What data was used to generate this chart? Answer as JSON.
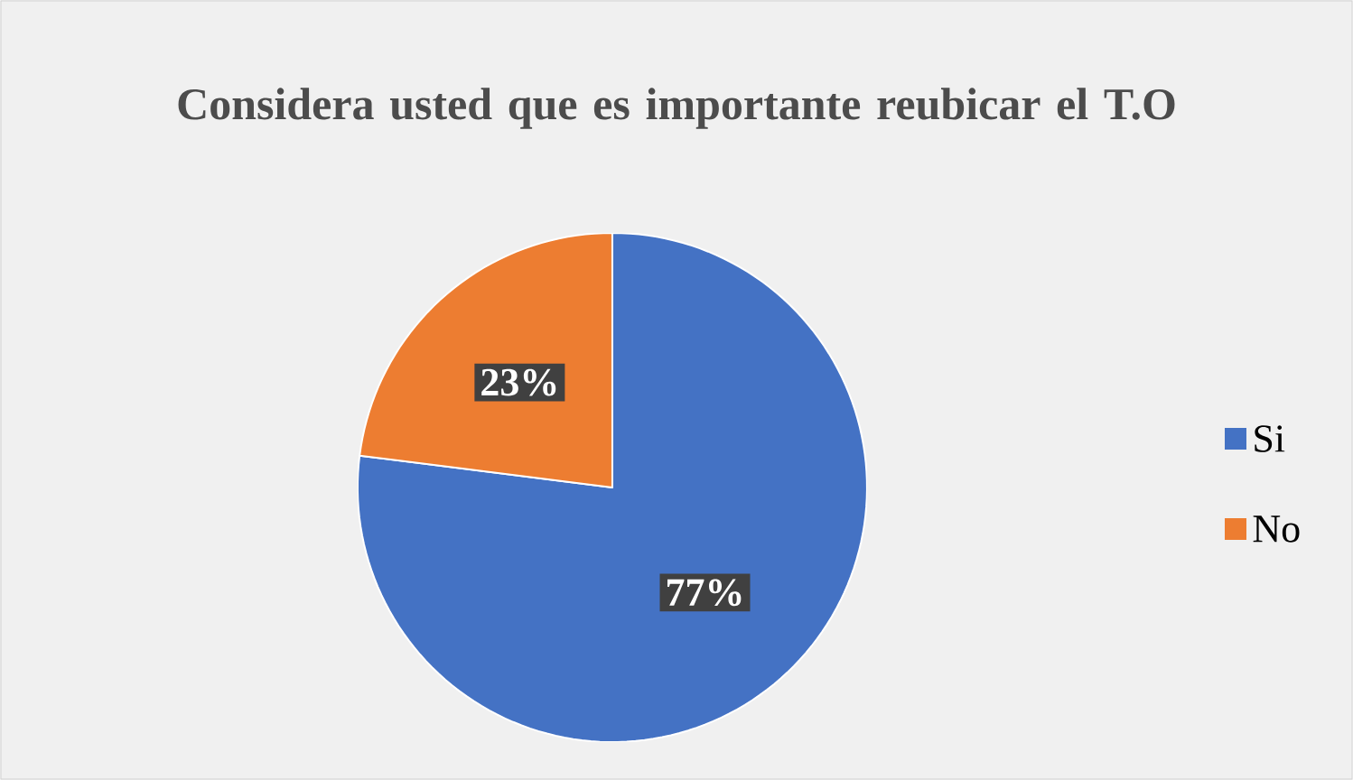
{
  "chart_data": {
    "type": "pie",
    "title": "Considera usted que es importante reubicar el T.O",
    "categories": [
      "Si",
      "No"
    ],
    "values": [
      77,
      23
    ],
    "colors": [
      "#4472c4",
      "#ed7d31"
    ],
    "value_labels": [
      "77%",
      "23%"
    ],
    "legend": "right"
  }
}
